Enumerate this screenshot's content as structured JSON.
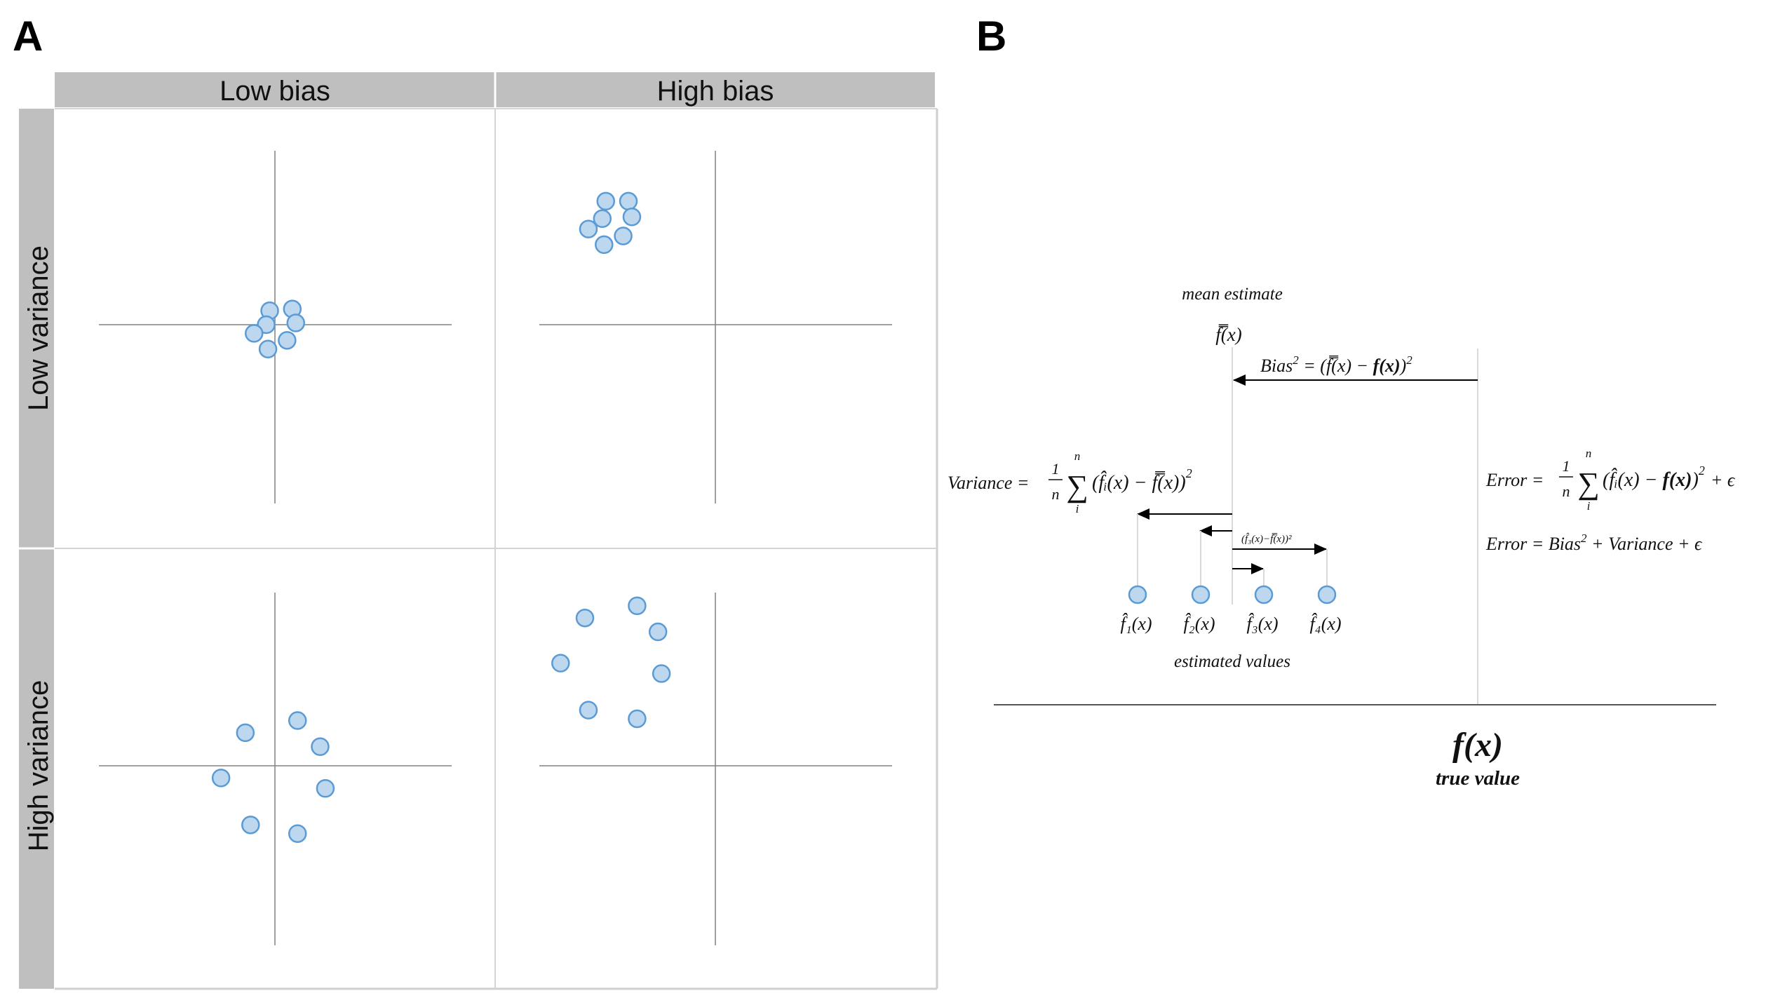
{
  "panels": {
    "a_label": "A",
    "b_label": "B"
  },
  "grid": {
    "col_headers": [
      "Low bias",
      "High bias"
    ],
    "row_headers": [
      "Low variance",
      "High variance"
    ],
    "targets": [
      {
        "name": "low-bias-low-variance",
        "points": [
          [
            -0.03,
            0.08
          ],
          [
            0.1,
            0.09
          ],
          [
            -0.05,
            0.0
          ],
          [
            0.12,
            0.01
          ],
          [
            -0.12,
            -0.05
          ],
          [
            0.07,
            -0.09
          ],
          [
            -0.04,
            -0.14
          ]
        ]
      },
      {
        "name": "high-bias-low-variance",
        "points": [
          [
            -0.63,
            0.71
          ],
          [
            -0.5,
            0.71
          ],
          [
            -0.65,
            0.61
          ],
          [
            -0.48,
            0.62
          ],
          [
            -0.73,
            0.55
          ],
          [
            -0.53,
            0.51
          ],
          [
            -0.64,
            0.46
          ]
        ]
      },
      {
        "name": "low-bias-high-variance",
        "points": [
          [
            -0.17,
            0.19
          ],
          [
            0.13,
            0.26
          ],
          [
            0.26,
            0.11
          ],
          [
            -0.31,
            -0.07
          ],
          [
            0.29,
            -0.13
          ],
          [
            -0.14,
            -0.34
          ],
          [
            0.13,
            -0.39
          ]
        ]
      },
      {
        "name": "high-bias-high-variance",
        "points": [
          [
            -0.75,
            0.85
          ],
          [
            -0.45,
            0.92
          ],
          [
            -0.33,
            0.77
          ],
          [
            -0.89,
            0.59
          ],
          [
            -0.31,
            0.53
          ],
          [
            -0.73,
            0.32
          ],
          [
            -0.45,
            0.27
          ]
        ]
      }
    ]
  },
  "diagram": {
    "mean_estimate_label": "mean estimate",
    "mean_symbol": "f̿(x)",
    "bias_lhs": "Bias",
    "bias_sup": "2",
    "bias_mid": " = (f̿(x) − ",
    "bias_bold": "f(x)",
    "bias_end": ")",
    "bias_end_sup": "2",
    "variance_lhs": "Variance =",
    "variance_frac_num": "1",
    "variance_frac_den": "n",
    "sum_top": "n",
    "sum_bottom": "i",
    "sum_symbol": "∑",
    "variance_inner": "(f̂ᵢ(x) − f̿(x))",
    "variance_sup": "2",
    "small_term": "(f̂₃(x)−f̿(x))²",
    "error_lhs": "Error =",
    "error_inner_a": "(f̂ᵢ(x) − ",
    "error_inner_bold": "f(x)",
    "error_inner_b": ")",
    "error_sup": "2",
    "error_eps": "+ ϵ",
    "error2_a": "Error =  Bias",
    "error2_sup": "2",
    "error2_b": " + Variance +  ϵ",
    "estimate_labels": [
      "f̂₁(x)",
      "f̂₂(x)",
      "f̂₃(x)",
      "f̂₄(x)"
    ],
    "estimated_values_label": "estimated values",
    "true_symbol": "f(x)",
    "true_value_label": "true value"
  },
  "colors": {
    "point_fill": "#bdd7ee",
    "point_stroke": "#5b9bd5",
    "header_bg": "#bfbfbf",
    "grid_line": "#d0d0d0",
    "axis_line": "#808080"
  }
}
